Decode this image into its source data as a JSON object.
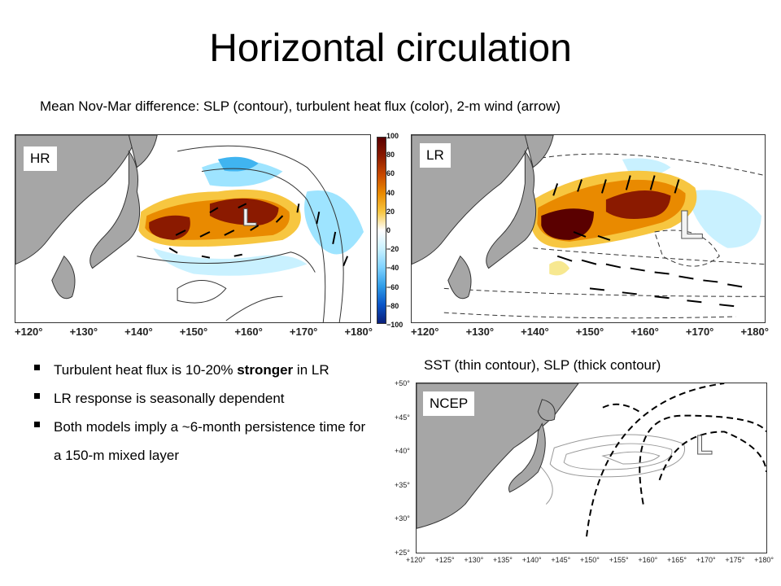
{
  "slide": {
    "title": "Horizontal circulation",
    "subtitle": "Mean Nov-Mar difference: SLP (contour), turbulent heat flux (color), 2-m wind (arrow)"
  },
  "panel_hr": {
    "tag": "HR",
    "low_marker": "L",
    "xticks": [
      "+120°",
      "+130°",
      "+140°",
      "+150°",
      "+160°",
      "+170°",
      "+180°"
    ]
  },
  "panel_lr": {
    "tag": "LR",
    "low_marker": "L",
    "xticks": [
      "+120°",
      "+130°",
      "+140°",
      "+150°",
      "+160°",
      "+170°",
      "+180°"
    ]
  },
  "colorbar": {
    "labels": [
      "100",
      "80",
      "60",
      "40",
      "20",
      "0",
      "−20",
      "−40",
      "−60",
      "−80",
      "−100"
    ],
    "colors": [
      "#5a0000",
      "#8b1a00",
      "#c84800",
      "#e98a00",
      "#f7c640",
      "#ffffff",
      "#c9f1ff",
      "#7fd2ff",
      "#2f9de8",
      "#0a55c8",
      "#0a1f7a"
    ]
  },
  "panel_ncep": {
    "caption": "SST (thin contour), SLP (thick contour)",
    "tag": "NCEP",
    "low_marker": "L",
    "xticks": [
      "+120°",
      "+125°",
      "+130°",
      "+135°",
      "+140°",
      "+145°",
      "+150°",
      "+155°",
      "+160°",
      "+165°",
      "+170°",
      "+175°",
      "+180°"
    ],
    "yticks": [
      "+50°",
      "+45°",
      "+40°",
      "+35°",
      "+30°",
      "+25°"
    ]
  },
  "bullets": [
    {
      "before": "Turbulent heat flux is 10-20% ",
      "bold": "stronger",
      "after": " in LR"
    },
    {
      "before": "LR response is seasonally dependent",
      "bold": "",
      "after": ""
    },
    {
      "before": "Both models imply a ~6-month persistence time for a 150-m mixed layer",
      "bold": "",
      "after": ""
    }
  ],
  "colors": {
    "land": "#a6a6a6",
    "heat_dark": "#5a0000",
    "heat_mid": "#c84800",
    "heat_light": "#f7c640",
    "cool": "#9ee4ff"
  }
}
